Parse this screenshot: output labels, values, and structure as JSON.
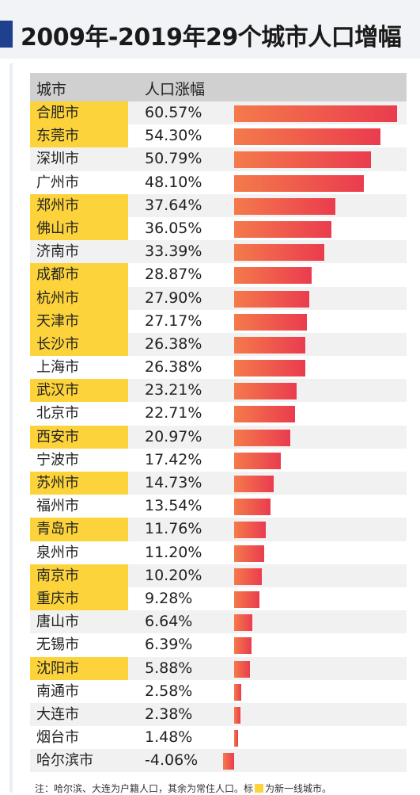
{
  "header": {
    "title": "2009年-2019年29个城市人口增幅"
  },
  "colors": {
    "tier1_highlight": "#fcd33a",
    "bar_start": "#f47a4b",
    "bar_end": "#ea3c4e",
    "title_accent": "#1f3f8f"
  },
  "note": {
    "prefix": "注：哈尔滨、大连为户籍人口，其余为常住人口。标",
    "suffix": "为新一线城市。"
  },
  "chart_data": {
    "type": "bar",
    "orientation": "horizontal",
    "title": "2009年-2019年29个城市人口增幅",
    "columns": [
      "城市",
      "人口涨幅"
    ],
    "unit": "%",
    "xlim": [
      -4.06,
      60.57
    ],
    "categories": [
      "合肥市",
      "东莞市",
      "深圳市",
      "广州市",
      "郑州市",
      "佛山市",
      "济南市",
      "成都市",
      "杭州市",
      "天津市",
      "长沙市",
      "上海市",
      "武汉市",
      "北京市",
      "西安市",
      "宁波市",
      "苏州市",
      "福州市",
      "青岛市",
      "泉州市",
      "南京市",
      "重庆市",
      "唐山市",
      "无锡市",
      "沈阳市",
      "南通市",
      "大连市",
      "烟台市",
      "哈尔滨市"
    ],
    "values": [
      60.57,
      54.3,
      50.79,
      48.1,
      37.64,
      36.05,
      33.39,
      28.87,
      27.9,
      27.17,
      26.38,
      26.38,
      23.21,
      22.71,
      20.97,
      17.42,
      14.73,
      13.54,
      11.76,
      11.2,
      10.2,
      9.28,
      6.64,
      6.39,
      5.88,
      2.58,
      2.38,
      1.48,
      -4.06
    ],
    "labels": [
      "60.57%",
      "54.30%",
      "50.79%",
      "48.10%",
      "37.64%",
      "36.05%",
      "33.39%",
      "28.87%",
      "27.90%",
      "27.17%",
      "26.38%",
      "26.38%",
      "23.21%",
      "22.71%",
      "20.97%",
      "17.42%",
      "14.73%",
      "13.54%",
      "11.76%",
      "11.20%",
      "10.20%",
      "9.28%",
      "6.64%",
      "6.39%",
      "5.88%",
      "2.58%",
      "2.38%",
      "1.48%",
      "-4.06%"
    ],
    "tier1_highlighted": [
      true,
      true,
      false,
      false,
      true,
      true,
      false,
      true,
      true,
      true,
      true,
      false,
      true,
      false,
      true,
      false,
      true,
      false,
      true,
      false,
      true,
      true,
      false,
      false,
      true,
      false,
      false,
      false,
      false
    ]
  }
}
